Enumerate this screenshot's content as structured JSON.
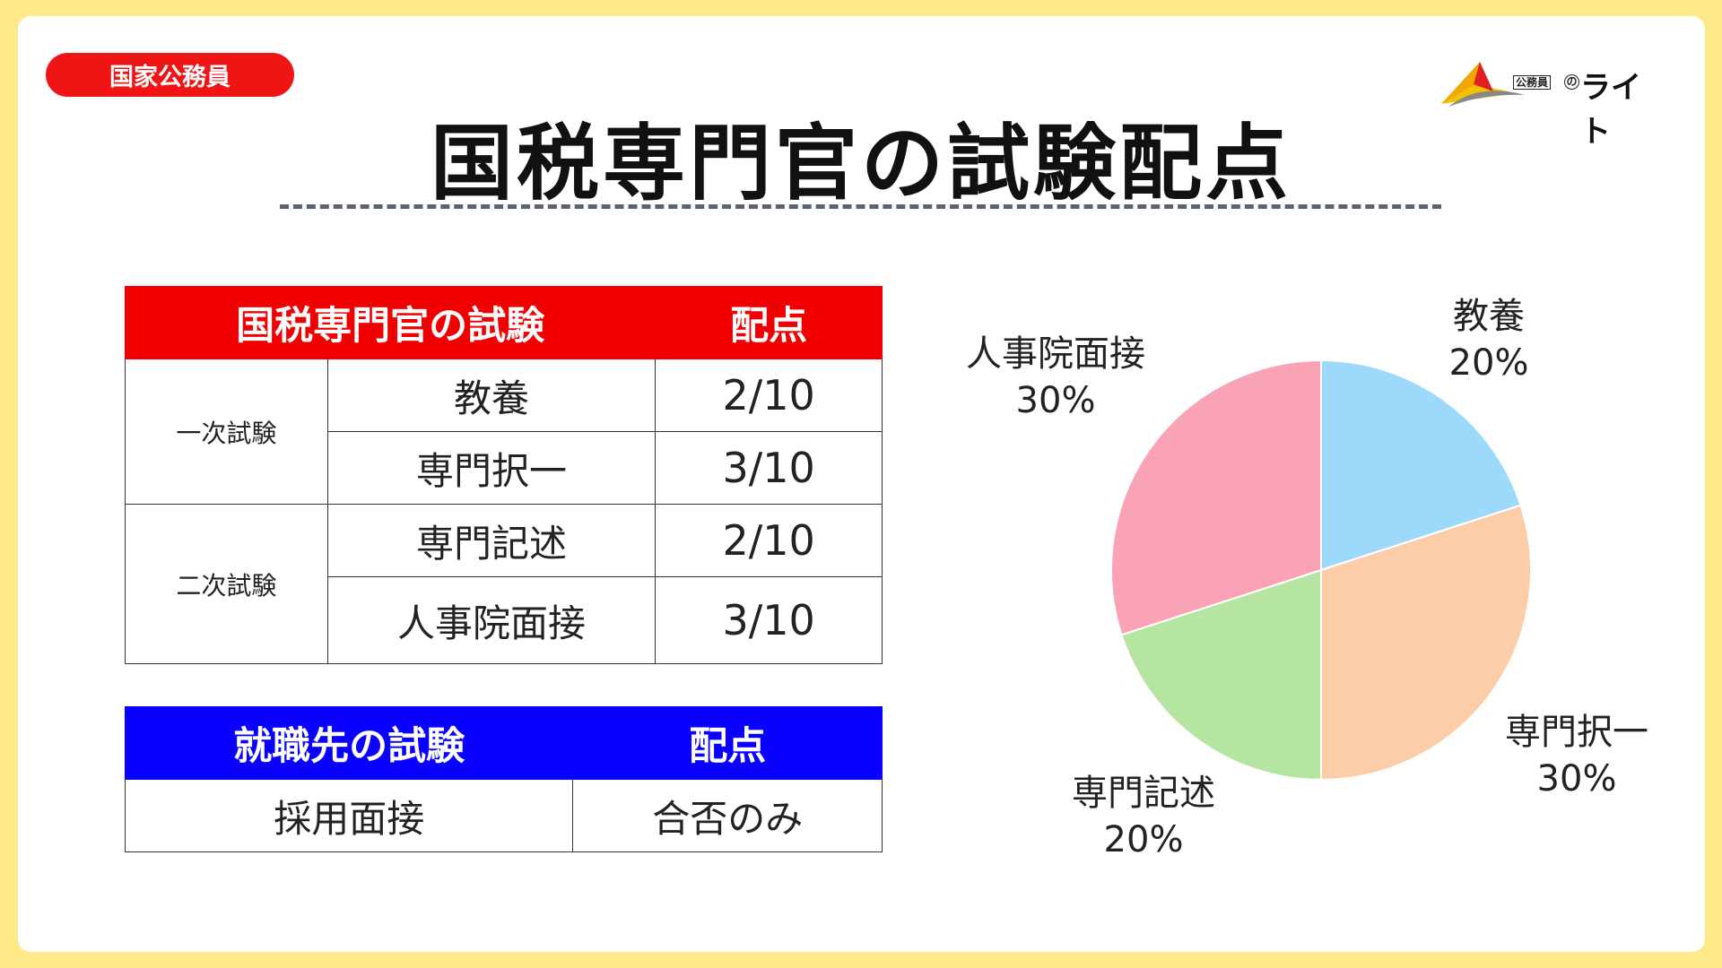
{
  "tag": "国家公務員",
  "title": "国税専門官の試験配点",
  "logo": {
    "box": "公務員",
    "no": "の",
    "text": "ライト"
  },
  "exam_table": {
    "headers": [
      "国税専門官の試験",
      "配点"
    ],
    "groups": [
      {
        "label": "一次試験",
        "rows": [
          {
            "item": "教養",
            "points": "2/10"
          },
          {
            "item": "専門択一",
            "points": "3/10"
          }
        ]
      },
      {
        "label": "二次試験",
        "rows": [
          {
            "item": "専門記述",
            "points": "2/10"
          },
          {
            "item": "人事院面接",
            "points": "3/10"
          }
        ]
      }
    ]
  },
  "employer_table": {
    "headers": [
      "就職先の試験",
      "配点"
    ],
    "rows": [
      {
        "item": "採用面接",
        "points": "合否のみ"
      }
    ]
  },
  "colors": {
    "tag": "#f01515",
    "table1_header": "#f00000",
    "table2_header": "#0a00ff",
    "background": "#fde88a"
  },
  "chart_data": {
    "type": "pie",
    "slices": [
      {
        "label": "教養",
        "value": 20,
        "value_label": "20%",
        "color": "#9dd9fb"
      },
      {
        "label": "専門択一",
        "value": 30,
        "value_label": "30%",
        "color": "#fdcdaa"
      },
      {
        "label": "専門記述",
        "value": 20,
        "value_label": "20%",
        "color": "#b6e5a2"
      },
      {
        "label": "人事院面接",
        "value": 30,
        "value_label": "30%",
        "color": "#fba3b6"
      }
    ]
  }
}
